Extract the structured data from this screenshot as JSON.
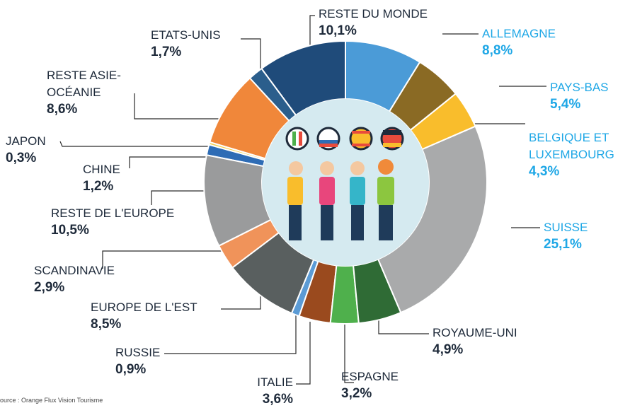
{
  "chart_data": {
    "type": "donut",
    "categories": [
      "ALLEMAGNE",
      "PAYS-BAS",
      "BELGIQUE ET LUXEMBOURG",
      "SUISSE",
      "ROYAUME-UNI",
      "ESPAGNE",
      "ITALIE",
      "RUSSIE",
      "EUROPE DE L'EST",
      "SCANDINAVIE",
      "RESTE DE L'EUROPE",
      "CHINE",
      "JAPON",
      "RESTE ASIE-OCÉANIE",
      "ETATS-UNIS",
      "RESTE DU MONDE"
    ],
    "values": [
      8.8,
      5.4,
      4.3,
      25.1,
      4.9,
      3.2,
      3.6,
      0.9,
      8.5,
      2.9,
      10.5,
      1.2,
      0.3,
      8.6,
      1.7,
      10.1
    ],
    "value_labels": [
      "8,8%",
      "5,4%",
      "4,3%",
      "25,1%",
      "4,9%",
      "3,2%",
      "3,6%",
      "0,9%",
      "8,5%",
      "2,9%",
      "10,5%",
      "1,2%",
      "0,3%",
      "8,6%",
      "1,7%",
      "10,1%"
    ],
    "colors": [
      "#4b9bd7",
      "#8a6a24",
      "#f9bd2c",
      "#a9aaab",
      "#2f6b35",
      "#4fb04c",
      "#9a4a1e",
      "#5b9bd5",
      "#595f5f",
      "#f0935a",
      "#9a9b9c",
      "#2e6cb5",
      "#f5d04c",
      "#f0873a",
      "#2b5e8c",
      "#1f4b7a"
    ],
    "label_colors": [
      "#1ea7e6",
      "#1ea7e6",
      "#1ea7e6",
      "#1ea7e6",
      "#1e2a3a",
      "#1e2a3a",
      "#1e2a3a",
      "#1e2a3a",
      "#1e2a3a",
      "#1e2a3a",
      "#1e2a3a",
      "#1e2a3a",
      "#1e2a3a",
      "#1e2a3a",
      "#1e2a3a",
      "#1e2a3a"
    ],
    "source": "Source : Orange Flux Vision Tourisme"
  }
}
